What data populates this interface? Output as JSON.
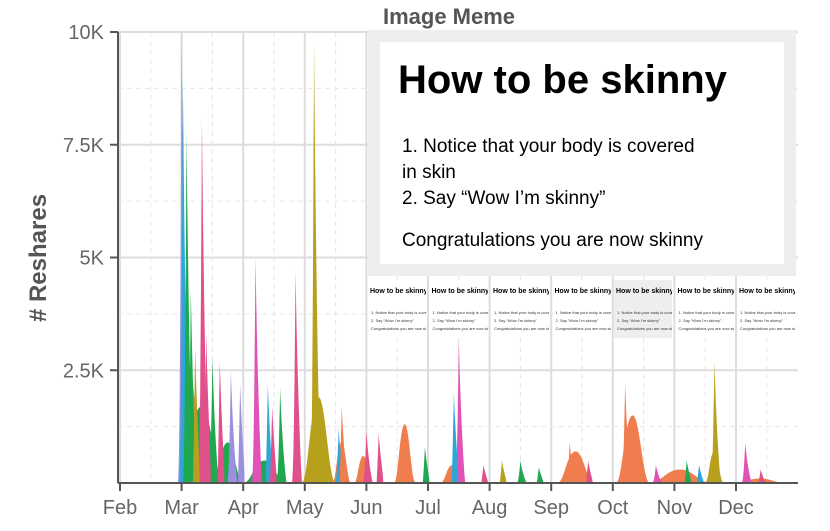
{
  "chart_data": {
    "type": "area",
    "title": "Image Meme",
    "xlabel": "",
    "ylabel": "# Reshares",
    "ylim": [
      0,
      10000
    ],
    "y_ticks": [
      {
        "value": 2500,
        "label": "2.5K"
      },
      {
        "value": 5000,
        "label": "5K"
      },
      {
        "value": 7500,
        "label": "7.5K"
      },
      {
        "value": 10000,
        "label": "10K"
      }
    ],
    "x_ticks": [
      "Feb",
      "Mar",
      "Apr",
      "May",
      "Jun",
      "Jul",
      "Aug",
      "Sep",
      "Oct",
      "Nov",
      "Dec"
    ],
    "grid": true,
    "stacked": true,
    "peaks": [
      {
        "month": 1.0,
        "value": 10000,
        "color": "#9b8fe0"
      },
      {
        "month": 1.02,
        "value": 9100,
        "color": "#2ea7d8"
      },
      {
        "month": 1.08,
        "value": 7800,
        "color": "#1fa84f"
      },
      {
        "month": 1.33,
        "value": 8100,
        "color": "#e0508a"
      },
      {
        "month": 1.5,
        "value": 2800,
        "color": "#1fa84f"
      },
      {
        "month": 1.8,
        "value": 2500,
        "color": "#9b8fe0"
      },
      {
        "month": 2.2,
        "value": 5000,
        "color": "#e052b5"
      },
      {
        "month": 2.6,
        "value": 2100,
        "color": "#1fa84f"
      },
      {
        "month": 2.85,
        "value": 4700,
        "color": "#e0508a"
      },
      {
        "month": 3.15,
        "value": 9800,
        "color": "#b7a01c"
      },
      {
        "month": 3.55,
        "value": 1200,
        "color": "#2ea7d8"
      },
      {
        "month": 4.0,
        "value": 1150,
        "color": "#e0508a"
      },
      {
        "month": 4.6,
        "value": 1300,
        "color": "#f07d4e"
      },
      {
        "month": 5.5,
        "value": 3200,
        "color": "#e052b5"
      },
      {
        "month": 6.5,
        "value": 500,
        "color": "#1fa84f"
      },
      {
        "month": 7.3,
        "value": 900,
        "color": "#f07d4e"
      },
      {
        "month": 8.2,
        "value": 2200,
        "color": "#f07d4e"
      },
      {
        "month": 8.7,
        "value": 400,
        "color": "#e052b5"
      },
      {
        "month": 9.65,
        "value": 2700,
        "color": "#b7a01c"
      },
      {
        "month": 10.15,
        "value": 900,
        "color": "#e052b5"
      }
    ],
    "colors": {
      "orange": "#f07d4e",
      "green": "#1fa84f",
      "olive": "#b7a01c",
      "pink": "#e0508a",
      "magenta": "#e052b5",
      "blue": "#2ea7d8",
      "purple": "#9b8fe0"
    }
  },
  "meme": {
    "title": "How to be skinny",
    "line1": "1. Notice that your body is covered",
    "line2": "in skin",
    "line3": "2. Say “Wow I’m skinny”",
    "line4": "Congratulations you are now skinny"
  }
}
